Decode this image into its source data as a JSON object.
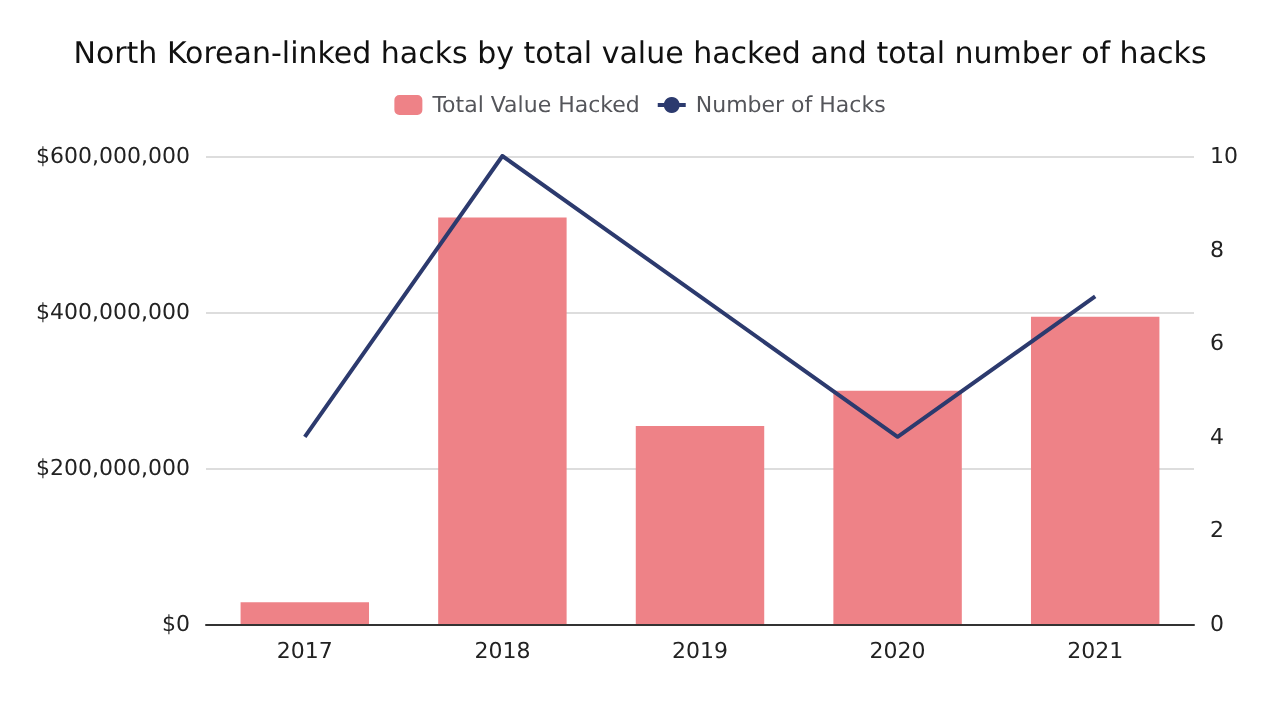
{
  "chart_data": {
    "type": "bar",
    "title": "North Korean-linked hacks by total value hacked and total number of hacks",
    "categories": [
      "2017",
      "2018",
      "2019",
      "2020",
      "2021"
    ],
    "series": [
      {
        "name": "Total Value Hacked",
        "color": "#ee8287",
        "values": [
          28000000,
          521000000,
          254000000,
          299000000,
          394000000
        ]
      },
      {
        "name": "Number of Hacks",
        "type": "line",
        "axis": "y2",
        "color": "#2c3a6e",
        "values": [
          4,
          10,
          7,
          4,
          7
        ]
      }
    ],
    "ylim": [
      0,
      600000000
    ],
    "yticks": [
      {
        "value": 0,
        "label": "$0"
      },
      {
        "value": 200000000,
        "label": "$200,000,000"
      },
      {
        "value": 400000000,
        "label": "$400,000,000"
      },
      {
        "value": 600000000,
        "label": "$600,000,000"
      }
    ],
    "y2lim": [
      0,
      10
    ],
    "y2ticks": [
      0,
      2,
      4,
      6,
      8,
      10
    ],
    "grid": "y",
    "legend": "top",
    "marker": "none"
  }
}
